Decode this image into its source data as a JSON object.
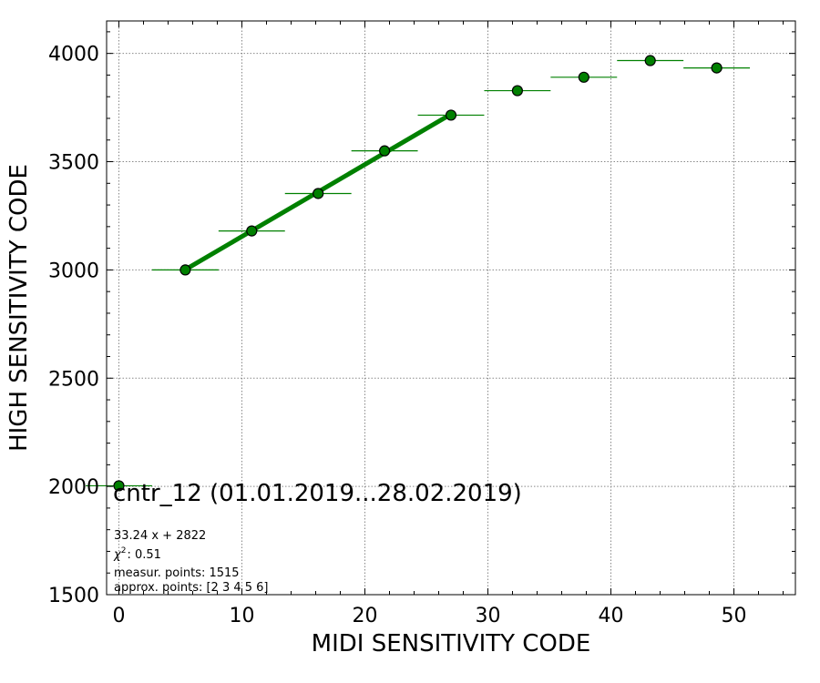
{
  "chart_data": {
    "type": "scatter",
    "title": "cntr_12 (01.01.2019...28.02.2019)",
    "xlabel": "MIDI SENSITIVITY CODE",
    "ylabel": "HIGH SENSITIVITY CODE",
    "xlim": [
      -1,
      55
    ],
    "ylim": [
      1500,
      4150
    ],
    "xticks": [
      0,
      10,
      20,
      30,
      40,
      50
    ],
    "yticks": [
      1500,
      2000,
      2500,
      3000,
      3500,
      4000
    ],
    "xtick_labels": [
      "0",
      "10",
      "20",
      "30",
      "40",
      "50"
    ],
    "ytick_labels": [
      "1500",
      "2000",
      "2500",
      "3000",
      "3500",
      "4000"
    ],
    "grid": true,
    "point_color": "#008000",
    "line_color": "#008000",
    "errbar_color": "#008000",
    "points": [
      {
        "x": 0.0,
        "y": 2003,
        "xerr": 2.7
      },
      {
        "x": 5.4,
        "y": 3000,
        "xerr": 2.7
      },
      {
        "x": 10.8,
        "y": 3180,
        "xerr": 2.7
      },
      {
        "x": 16.2,
        "y": 3353,
        "xerr": 2.7
      },
      {
        "x": 21.6,
        "y": 3550,
        "xerr": 2.7
      },
      {
        "x": 27.0,
        "y": 3715,
        "xerr": 2.7
      },
      {
        "x": 32.4,
        "y": 3828,
        "xerr": 2.7
      },
      {
        "x": 37.8,
        "y": 3890,
        "xerr": 2.7
      },
      {
        "x": 43.2,
        "y": 3967,
        "xerr": 2.7
      },
      {
        "x": 48.6,
        "y": 3933,
        "xerr": 2.7
      }
    ],
    "fit": {
      "slope": 33.24,
      "intercept": 2822,
      "x_range": [
        5.4,
        27.0
      ]
    },
    "annotations": {
      "fit_equation": "33.24 x + 2822",
      "chi_label": "χ",
      "chi_exp": "2",
      "chi_value": ": 0.51",
      "measur_points": "measur. points: 1515",
      "approx_points": "approx. points: [2 3 4 5 6]"
    }
  }
}
